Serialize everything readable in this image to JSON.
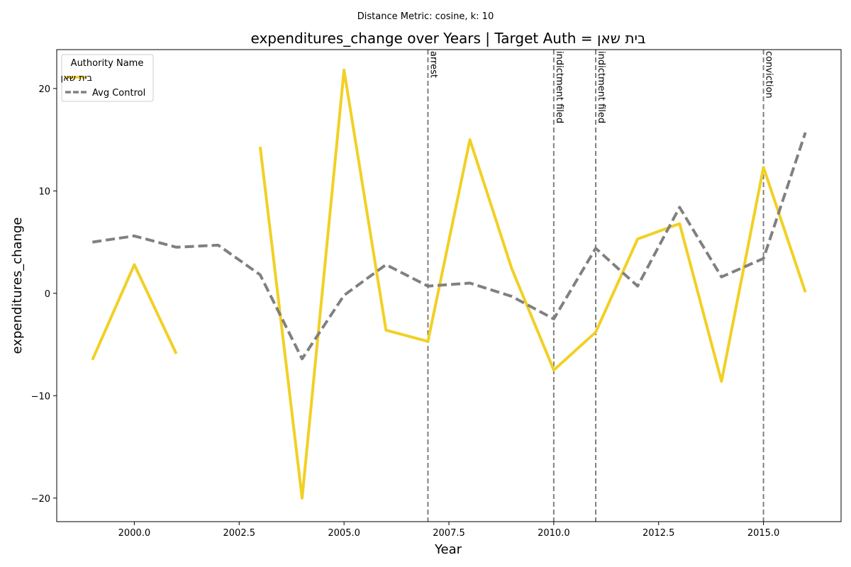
{
  "suptitle": "Distance Metric: cosine, k: 10",
  "chart_data": {
    "type": "line",
    "title": "expenditures_change over Years | Target Auth = בית שאן",
    "xlabel": "Year",
    "ylabel": "expenditures_change",
    "xlim": [
      1998.15,
      2016.85
    ],
    "ylim": [
      -22.3,
      23.8
    ],
    "xticks": [
      2000.0,
      2002.5,
      2005.0,
      2007.5,
      2010.0,
      2012.5,
      2015.0
    ],
    "xtick_labels": [
      "2000.0",
      "2002.5",
      "2005.0",
      "2007.5",
      "2010.0",
      "2012.5",
      "2015.0"
    ],
    "yticks": [
      -20,
      -10,
      0,
      10,
      20
    ],
    "ytick_labels": [
      "−20",
      "−10",
      "0",
      "10",
      "20"
    ],
    "grid": false,
    "legend": {
      "title": "Authority Name",
      "placement": "top-left"
    },
    "series": [
      {
        "name": "בית שאן",
        "color": "#f2d024",
        "style": "solid",
        "x": [
          1999,
          2000,
          2001,
          2002,
          2003,
          2004,
          2005,
          2006,
          2007,
          2008,
          2009,
          2010,
          2011,
          2012,
          2013,
          2014,
          2015,
          2016
        ],
        "y": [
          -6.5,
          2.8,
          -5.9,
          null,
          14.3,
          -20.0,
          21.8,
          -3.6,
          -4.7,
          15.0,
          2.4,
          -7.5,
          -3.8,
          5.3,
          6.8,
          -8.6,
          12.3,
          0.1
        ]
      },
      {
        "name": "Avg Control",
        "color": "#808080",
        "style": "dashed",
        "x": [
          1999,
          2000,
          2001,
          2002,
          2003,
          2004,
          2005,
          2006,
          2007,
          2008,
          2009,
          2010,
          2011,
          2012,
          2013,
          2014,
          2015,
          2016
        ],
        "y": [
          5.0,
          5.6,
          4.5,
          4.7,
          1.8,
          -6.4,
          -0.2,
          2.8,
          0.7,
          1.0,
          -0.3,
          -2.5,
          4.4,
          0.7,
          8.4,
          1.6,
          3.4,
          15.7
        ]
      }
    ],
    "events": [
      {
        "x": 2007,
        "label": "arrest"
      },
      {
        "x": 2010,
        "label": "indictment filed"
      },
      {
        "x": 2011,
        "label": "indictment filed"
      },
      {
        "x": 2015,
        "label": "conviction"
      }
    ]
  }
}
